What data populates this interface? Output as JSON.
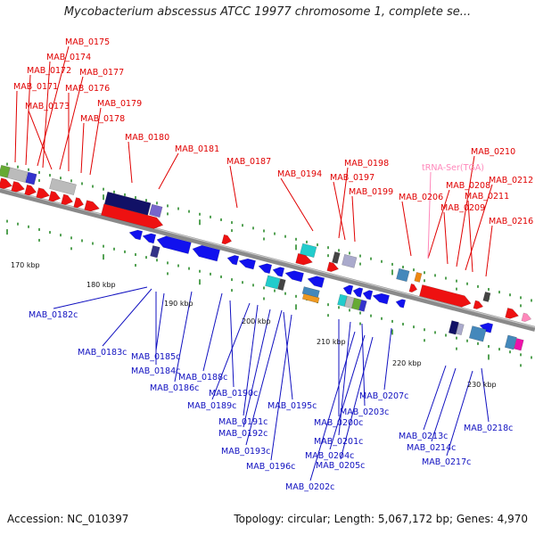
{
  "title": "Mycobacterium abscessus ATCC 19977 chromosome 1, complete se...",
  "footer": {
    "accession": "Accession: NC_010397",
    "summary": "Topology: circular; Length: 5,067,172 bp; Genes: 4,970"
  },
  "colors": {
    "forward_label": "#e00000",
    "reverse_label": "#1010c0",
    "trna_label": "#ff88bb",
    "backbone": "#8a8a8a",
    "tick": "#2a8a2a"
  },
  "scale_labels": [
    "170 kbp",
    "180 kbp",
    "190 kbp",
    "200 kbp",
    "210 kbp",
    "220 kbp",
    "230 kbp"
  ],
  "forward_genes": [
    "MAB_0175",
    "MAB_0174",
    "MAB_0172",
    "MAB_0177",
    "MAB_0171",
    "MAB_0176",
    "MAB_0173",
    "MAB_0179",
    "MAB_0178",
    "MAB_0180",
    "MAB_0181",
    "MAB_0187",
    "MAB_0194",
    "MAB_0198",
    "MAB_0197",
    "MAB_0199",
    "MAB_0210",
    "MAB_0208",
    "MAB_0212",
    "MAB_0206",
    "MAB_0211",
    "MAB_0209",
    "MAB_0216"
  ],
  "trna_genes": [
    "tRNA-Ser(TGA)"
  ],
  "reverse_genes": [
    "MAB_0182c",
    "MAB_0183c",
    "MAB_0185c",
    "MAB_0184c",
    "MAB_0188c",
    "MAB_0186c",
    "MAB_0190c",
    "MAB_0189c",
    "MAB_0195c",
    "MAB_0191c",
    "MAB_0192c",
    "MAB_0193c",
    "MAB_0196c",
    "MAB_0203c",
    "MAB_0200c",
    "MAB_0201c",
    "MAB_0204c",
    "MAB_0205c",
    "MAB_0202c",
    "MAB_0207c",
    "MAB_0213c",
    "MAB_0218c",
    "MAB_0214c",
    "MAB_0217c"
  ]
}
